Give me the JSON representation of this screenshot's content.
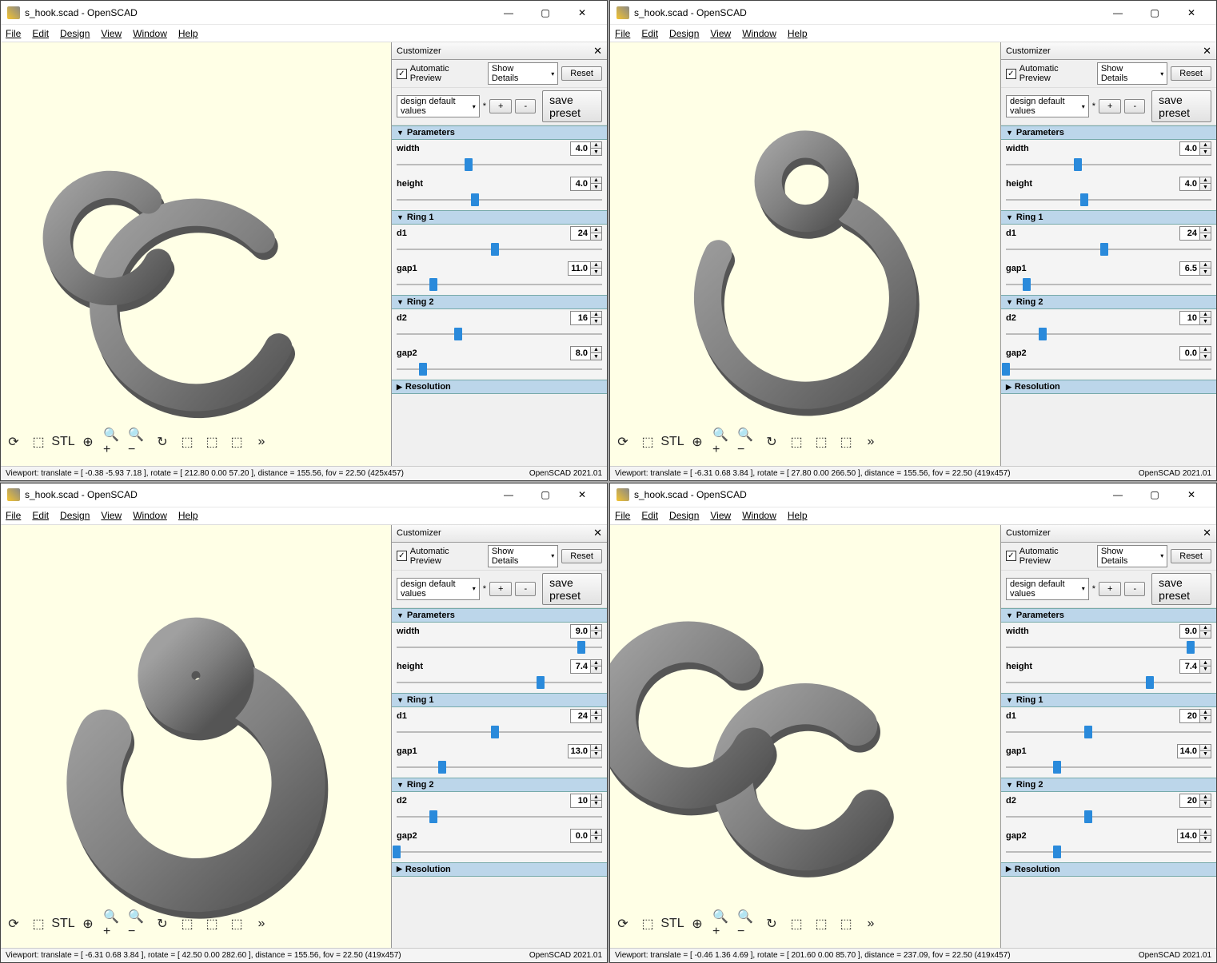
{
  "panes": [
    {
      "title": "s_hook.scad - OpenSCAD",
      "menu": [
        "File",
        "Edit",
        "Design",
        "View",
        "Window",
        "Help"
      ],
      "customizer": {
        "title": "Customizer",
        "auto_preview_checked": true,
        "auto_preview_label": "Automatic Preview",
        "details_select": "Show Details",
        "reset_label": "Reset",
        "preset_select": "design default values",
        "asterisk": true,
        "plus": "+",
        "minus": "-",
        "save_preset": "save preset",
        "sections": [
          {
            "name": "Parameters",
            "open": true,
            "params": [
              {
                "label": "width",
                "value": "4.0",
                "slider_pct": 35
              },
              {
                "label": "height",
                "value": "4.0",
                "slider_pct": 38
              }
            ]
          },
          {
            "name": "Ring 1",
            "open": true,
            "params": [
              {
                "label": "d1",
                "value": "24",
                "slider_pct": 48
              },
              {
                "label": "gap1",
                "value": "11.0",
                "slider_pct": 18
              }
            ]
          },
          {
            "name": "Ring 2",
            "open": true,
            "params": [
              {
                "label": "d2",
                "value": "16",
                "slider_pct": 30
              },
              {
                "label": "gap2",
                "value": "8.0",
                "slider_pct": 13
              }
            ]
          },
          {
            "name": "Resolution",
            "open": false,
            "params": []
          }
        ]
      },
      "shape": {
        "kind": "s",
        "big_r": 95,
        "small_r": 55,
        "stroke": 28
      },
      "status_left": "Viewport: translate = [ -0.38 -5.93 7.18 ], rotate = [ 212.80 0.00 57.20 ], distance = 155.56, fov = 22.50 (425x457)",
      "status_right": "OpenSCAD 2021.01"
    },
    {
      "title": "s_hook.scad - OpenSCAD",
      "menu": [
        "File",
        "Edit",
        "Design",
        "View",
        "Window",
        "Help"
      ],
      "customizer": {
        "title": "Customizer",
        "auto_preview_checked": true,
        "auto_preview_label": "Automatic Preview",
        "details_select": "Show Details",
        "reset_label": "Reset",
        "preset_select": "design default values",
        "asterisk": true,
        "plus": "+",
        "minus": "-",
        "save_preset": "save preset",
        "sections": [
          {
            "name": "Parameters",
            "open": true,
            "params": [
              {
                "label": "width",
                "value": "4.0",
                "slider_pct": 35
              },
              {
                "label": "height",
                "value": "4.0",
                "slider_pct": 38
              }
            ]
          },
          {
            "name": "Ring 1",
            "open": true,
            "params": [
              {
                "label": "d1",
                "value": "24",
                "slider_pct": 48
              },
              {
                "label": "gap1",
                "value": "6.5",
                "slider_pct": 10
              }
            ]
          },
          {
            "name": "Ring 2",
            "open": true,
            "params": [
              {
                "label": "d2",
                "value": "10",
                "slider_pct": 18
              },
              {
                "label": "gap2",
                "value": "0.0",
                "slider_pct": 0
              }
            ]
          },
          {
            "name": "Resolution",
            "open": false,
            "params": []
          }
        ]
      },
      "shape": {
        "kind": "eight",
        "big_r": 100,
        "small_r": 38,
        "stroke": 28
      },
      "status_left": "Viewport: translate = [ -6.31 0.68 3.84 ], rotate = [ 27.80 0.00 266.50 ], distance = 155.56, fov = 22.50 (419x457)",
      "status_right": "OpenSCAD 2021.01"
    },
    {
      "title": "s_hook.scad - OpenSCAD",
      "menu": [
        "File",
        "Edit",
        "Design",
        "View",
        "Window",
        "Help"
      ],
      "customizer": {
        "title": "Customizer",
        "auto_preview_checked": true,
        "auto_preview_label": "Automatic Preview",
        "details_select": "Show Details",
        "reset_label": "Reset",
        "preset_select": "design default values",
        "asterisk": true,
        "plus": "+",
        "minus": "-",
        "save_preset": "save preset",
        "sections": [
          {
            "name": "Parameters",
            "open": true,
            "params": [
              {
                "label": "width",
                "value": "9.0",
                "slider_pct": 90
              },
              {
                "label": "height",
                "value": "7.4",
                "slider_pct": 70
              }
            ]
          },
          {
            "name": "Ring 1",
            "open": true,
            "params": [
              {
                "label": "d1",
                "value": "24",
                "slider_pct": 48
              },
              {
                "label": "gap1",
                "value": "13.0",
                "slider_pct": 22
              }
            ]
          },
          {
            "name": "Ring 2",
            "open": true,
            "params": [
              {
                "label": "d2",
                "value": "10",
                "slider_pct": 18
              },
              {
                "label": "gap2",
                "value": "0.0",
                "slider_pct": 0
              }
            ]
          },
          {
            "name": "Resolution",
            "open": false,
            "params": []
          }
        ]
      },
      "shape": {
        "kind": "eight_thick",
        "big_r": 105,
        "small_r": 32,
        "stroke": 55
      },
      "status_left": "Viewport: translate = [ -6.31 0.68 3.84 ], rotate = [ 42.50 0.00 282.60 ], distance = 155.56, fov = 22.50 (419x457)",
      "status_right": "OpenSCAD 2021.01"
    },
    {
      "title": "s_hook.scad - OpenSCAD",
      "menu": [
        "File",
        "Edit",
        "Design",
        "View",
        "Window",
        "Help"
      ],
      "customizer": {
        "title": "Customizer",
        "auto_preview_checked": true,
        "auto_preview_label": "Automatic Preview",
        "details_select": "Show Details",
        "reset_label": "Reset",
        "preset_select": "design default values",
        "asterisk": true,
        "plus": "+",
        "minus": "-",
        "save_preset": "save preset",
        "sections": [
          {
            "name": "Parameters",
            "open": true,
            "params": [
              {
                "label": "width",
                "value": "9.0",
                "slider_pct": 90
              },
              {
                "label": "height",
                "value": "7.4",
                "slider_pct": 70
              }
            ]
          },
          {
            "name": "Ring 1",
            "open": true,
            "params": [
              {
                "label": "d1",
                "value": "20",
                "slider_pct": 40
              },
              {
                "label": "gap1",
                "value": "14.0",
                "slider_pct": 25
              }
            ]
          },
          {
            "name": "Ring 2",
            "open": true,
            "params": [
              {
                "label": "d2",
                "value": "20",
                "slider_pct": 40
              },
              {
                "label": "gap2",
                "value": "14.0",
                "slider_pct": 25
              }
            ]
          },
          {
            "name": "Resolution",
            "open": false,
            "params": []
          }
        ]
      },
      "shape": {
        "kind": "s_thick",
        "big_r": 75,
        "small_r": 75,
        "stroke": 42
      },
      "status_left": "Viewport: translate = [ -0.46 1.36 4.69 ], rotate = [ 201.60 0.00 85.70 ], distance = 237.09, fov = 22.50 (419x457)",
      "status_right": "OpenSCAD 2021.01"
    }
  ],
  "colors": {
    "bg": "#ffffe6",
    "shape_light": "#a0a0a0",
    "shape_mid": "#808080",
    "shape_dark": "#555555",
    "section": "#bcd6ea",
    "slider": "#2a8adb"
  },
  "toolbar_icons": [
    "⟳",
    "⬚",
    "STL",
    "⊕",
    "🔍+",
    "🔍−",
    "↻",
    "⬚",
    "⬚",
    "⬚",
    "»"
  ]
}
